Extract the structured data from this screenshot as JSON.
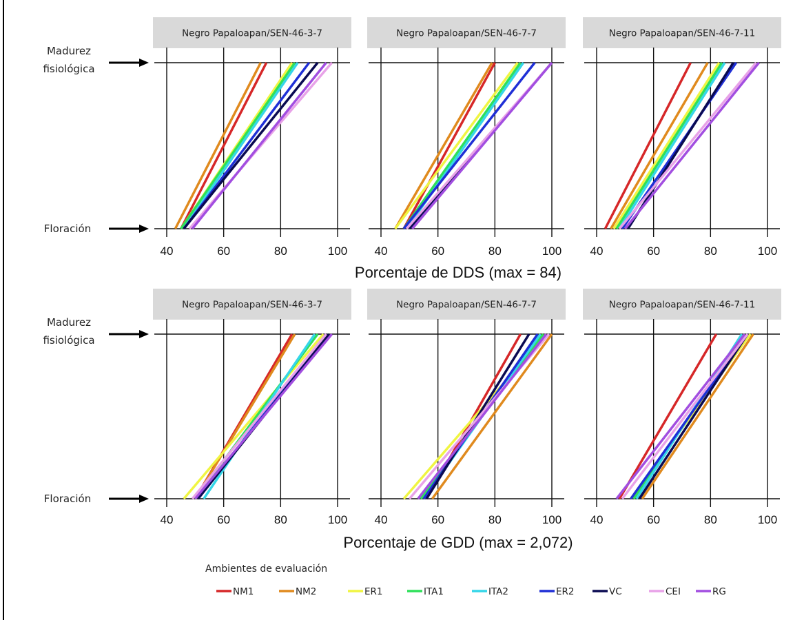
{
  "chart_data": [
    {
      "type": "line",
      "xlabel": "Porcentaje de DDS (max = 84)",
      "xlim": [
        40,
        100
      ],
      "xticks": [
        40,
        60,
        80,
        100
      ],
      "stage_labels": [
        "Floración",
        "Madurez fisiológica"
      ],
      "panels": [
        {
          "title": "Negro Papaloapan/SEN-46-3-7",
          "series": [
            {
              "name": "NM1",
              "values": [
                45,
                75
              ]
            },
            {
              "name": "NM2",
              "values": [
                43,
                73
              ]
            },
            {
              "name": "ER1",
              "values": [
                45,
                84
              ]
            },
            {
              "name": "ITA1",
              "values": [
                45,
                85
              ]
            },
            {
              "name": "ITA2",
              "values": [
                46,
                86
              ]
            },
            {
              "name": "ER2",
              "values": [
                46,
                90
              ]
            },
            {
              "name": "VC",
              "values": [
                46,
                93
              ]
            },
            {
              "name": "CEI",
              "values": [
                48,
                98
              ]
            },
            {
              "name": "RG",
              "values": [
                49,
                96
              ]
            }
          ]
        },
        {
          "title": "Negro Papaloapan/SEN-46-7-7",
          "series": [
            {
              "name": "NM1",
              "values": [
                48,
                80
              ]
            },
            {
              "name": "NM2",
              "values": [
                45,
                79
              ]
            },
            {
              "name": "ER1",
              "values": [
                45,
                88
              ]
            },
            {
              "name": "ITA1",
              "values": [
                48,
                89
              ]
            },
            {
              "name": "ITA2",
              "values": [
                49,
                90
              ]
            },
            {
              "name": "ER2",
              "values": [
                48,
                94
              ]
            },
            {
              "name": "VC",
              "values": [
                50,
                100
              ]
            },
            {
              "name": "CEI",
              "values": [
                49,
                100
              ]
            },
            {
              "name": "RG",
              "values": [
                51,
                100
              ]
            }
          ]
        },
        {
          "title": "Negro Papaloapan/SEN-46-7-11",
          "series": [
            {
              "name": "NM1",
              "values": [
                43,
                73
              ]
            },
            {
              "name": "NM2",
              "values": [
                45,
                79
              ]
            },
            {
              "name": "ER1",
              "values": [
                46,
                83
              ]
            },
            {
              "name": "ITA1",
              "values": [
                47,
                84
              ]
            },
            {
              "name": "ITA2",
              "values": [
                48,
                85
              ]
            },
            {
              "name": "ER2",
              "values": [
                49,
                89
              ]
            },
            {
              "name": "VC",
              "values": [
                51,
                88
              ]
            },
            {
              "name": "CEI",
              "values": [
                48,
                96
              ]
            },
            {
              "name": "RG",
              "values": [
                50,
                97
              ]
            }
          ]
        }
      ]
    },
    {
      "type": "line",
      "xlabel": "Porcentaje de GDD (max =  2,072)",
      "xlim": [
        40,
        100
      ],
      "xticks": [
        40,
        60,
        80,
        100
      ],
      "stage_labels": [
        "Floración",
        "Madurez fisiológica"
      ],
      "panels": [
        {
          "title": "Negro Papaloapan/SEN-46-3-7",
          "series": [
            {
              "name": "NM1",
              "values": [
                50,
                84
              ]
            },
            {
              "name": "NM2",
              "values": [
                50,
                85
              ]
            },
            {
              "name": "ER1",
              "values": [
                46,
                95
              ]
            },
            {
              "name": "ITA1",
              "values": [
                50,
                93
              ]
            },
            {
              "name": "ITA2",
              "values": [
                53,
                92
              ]
            },
            {
              "name": "ER2",
              "values": [
                51,
                96
              ]
            },
            {
              "name": "VC",
              "values": [
                51,
                97
              ]
            },
            {
              "name": "CEI",
              "values": [
                49,
                96
              ]
            },
            {
              "name": "RG",
              "values": [
                50,
                98
              ]
            }
          ]
        },
        {
          "title": "Negro Papaloapan/SEN-46-7-7",
          "series": [
            {
              "name": "NM1",
              "values": [
                56,
                89
              ]
            },
            {
              "name": "NM2",
              "values": [
                58,
                100
              ]
            },
            {
              "name": "ER1",
              "values": [
                48,
                98
              ]
            },
            {
              "name": "ITA1",
              "values": [
                54,
                97
              ]
            },
            {
              "name": "ITA2",
              "values": [
                55,
                96
              ]
            },
            {
              "name": "ER2",
              "values": [
                55,
                95
              ]
            },
            {
              "name": "VC",
              "values": [
                56,
                92
              ]
            },
            {
              "name": "CEI",
              "values": [
                50,
                99
              ]
            },
            {
              "name": "RG",
              "values": [
                53,
                98
              ]
            }
          ]
        },
        {
          "title": "Negro Papaloapan/SEN-46-7-11",
          "series": [
            {
              "name": "NM1",
              "values": [
                48,
                82
              ]
            },
            {
              "name": "NM2",
              "values": [
                56,
                95
              ]
            },
            {
              "name": "ER1",
              "values": [
                52,
                94
              ]
            },
            {
              "name": "ITA1",
              "values": [
                53,
                92
              ]
            },
            {
              "name": "ITA2",
              "values": [
                54,
                91
              ]
            },
            {
              "name": "ER2",
              "values": [
                52,
                93
              ]
            },
            {
              "name": "VC",
              "values": [
                55,
                93
              ]
            },
            {
              "name": "CEI",
              "values": [
                49,
                93
              ]
            },
            {
              "name": "RG",
              "values": [
                47,
                92
              ]
            }
          ]
        }
      ]
    }
  ],
  "legend": {
    "title": "Ambientes de evaluación",
    "items": [
      {
        "name": "NM1",
        "color": "#d62728"
      },
      {
        "name": "NM2",
        "color": "#e08a1e"
      },
      {
        "name": "ER1",
        "color": "#f0f542"
      },
      {
        "name": "ITA1",
        "color": "#2ee05a"
      },
      {
        "name": "ITA2",
        "color": "#35d6e8"
      },
      {
        "name": "ER2",
        "color": "#1f2fd6"
      },
      {
        "name": "VC",
        "color": "#0a0a52"
      },
      {
        "name": "CEI",
        "color": "#e8a2e8"
      },
      {
        "name": "RG",
        "color": "#a24ee0"
      }
    ]
  }
}
